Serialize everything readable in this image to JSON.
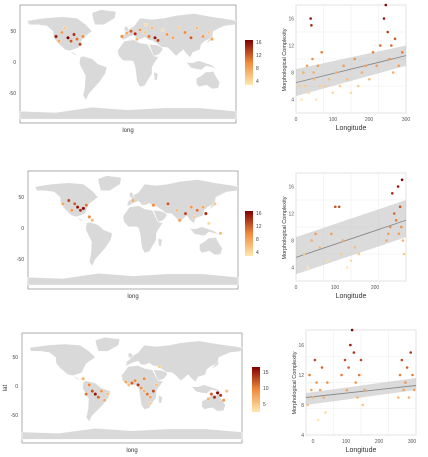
{
  "panel_1": {
    "map": {
      "xlabel": "long",
      "y_ticks": [
        "50",
        "0",
        "-50"
      ],
      "legend_ticks": [
        "16",
        "12",
        "8",
        "4"
      ],
      "colors": {
        "land": "#d9d9d9",
        "panel_bg": "#ffffff",
        "low": "#fee8b0",
        "mid": "#f08a3c",
        "high": "#7f0000"
      }
    },
    "scatter": {
      "xlabel": "Longitude",
      "ylabel": "Morphological Complexity",
      "x_ticks": [
        "0",
        "100",
        "200",
        "300"
      ],
      "y_ticks": [
        "16",
        "12",
        "8",
        "4"
      ]
    }
  },
  "panel_2": {
    "map": {
      "xlabel": "long",
      "y_ticks": [
        "50",
        "0",
        "-50"
      ],
      "legend_ticks": [
        "16",
        "12",
        "8",
        "4"
      ],
      "colors": {
        "land": "#d9d9d9",
        "panel_bg": "#ffffff",
        "low": "#fee8b0",
        "mid": "#f08a3c",
        "high": "#7f0000"
      }
    },
    "scatter": {
      "xlabel": "Longitude",
      "ylabel": "Morphological Complexity",
      "x_ticks": [
        "0",
        "100",
        "200"
      ],
      "y_ticks": [
        "16",
        "12",
        "8",
        "4"
      ]
    }
  },
  "panel_3": {
    "map": {
      "xlabel": "long",
      "ylabel": "lat",
      "y_ticks": [
        "50",
        "0",
        "-50"
      ],
      "legend_ticks": [
        "15",
        "10",
        "5"
      ],
      "colors": {
        "land": "#d9d9d9",
        "panel_bg": "#ffffff",
        "low": "#fee8b0",
        "mid": "#f08a3c",
        "high": "#7f0000"
      }
    },
    "scatter": {
      "xlabel": "Longitude",
      "ylabel": "Morphological Complexity",
      "x_ticks": [
        "0",
        "100",
        "200",
        "300"
      ],
      "y_ticks": [
        "16",
        "12",
        "8",
        "4"
      ]
    }
  },
  "chart_data": [
    {
      "type": "scatter",
      "subtype": "map",
      "xlabel": "long",
      "ylabel": "",
      "ylim": [
        -90,
        90
      ],
      "xlim": [
        -180,
        180
      ],
      "legend_range": [
        4,
        16
      ],
      "legend_position": "right",
      "points": [
        {
          "lon": -10,
          "lat": 42,
          "v": 10
        },
        {
          "lon": -2,
          "lat": 47,
          "v": 8
        },
        {
          "lon": 5,
          "lat": 50,
          "v": 12
        },
        {
          "lon": 12,
          "lat": 46,
          "v": 14
        },
        {
          "lon": 20,
          "lat": 52,
          "v": 9
        },
        {
          "lon": 28,
          "lat": 48,
          "v": 6
        },
        {
          "lon": 35,
          "lat": 42,
          "v": 11
        },
        {
          "lon": 40,
          "lat": 55,
          "v": 7
        },
        {
          "lon": 45,
          "lat": 40,
          "v": 15
        },
        {
          "lon": 50,
          "lat": 36,
          "v": 13
        },
        {
          "lon": 58,
          "lat": 52,
          "v": 5
        },
        {
          "lon": 65,
          "lat": 45,
          "v": 9
        },
        {
          "lon": 75,
          "lat": 40,
          "v": 8
        },
        {
          "lon": 85,
          "lat": 55,
          "v": 6
        },
        {
          "lon": 95,
          "lat": 48,
          "v": 10
        },
        {
          "lon": 105,
          "lat": 40,
          "v": 12
        },
        {
          "lon": 115,
          "lat": 55,
          "v": 7
        },
        {
          "lon": 125,
          "lat": 42,
          "v": 9
        },
        {
          "lon": 135,
          "lat": 48,
          "v": 6
        },
        {
          "lon": 140,
          "lat": 38,
          "v": 8
        },
        {
          "lon": 30,
          "lat": 60,
          "v": 5
        },
        {
          "lon": 15,
          "lat": 38,
          "v": 7
        },
        {
          "lon": -100,
          "lat": 40,
          "v": 16
        },
        {
          "lon": -95,
          "lat": 35,
          "v": 12
        },
        {
          "lon": -90,
          "lat": 45,
          "v": 14
        },
        {
          "lon": -85,
          "lat": 38,
          "v": 11
        },
        {
          "lon": -110,
          "lat": 48,
          "v": 9
        },
        {
          "lon": -120,
          "lat": 42,
          "v": 15
        },
        {
          "lon": -75,
          "lat": 42,
          "v": 10
        },
        {
          "lon": -105,
          "lat": 55,
          "v": 6
        },
        {
          "lon": -80,
          "lat": 30,
          "v": 13
        },
        {
          "lon": -115,
          "lat": 35,
          "v": 8
        }
      ]
    },
    {
      "type": "scatter",
      "xlabel": "Longitude",
      "ylabel": "Morphological Complexity",
      "xlim": [
        0,
        300
      ],
      "ylim": [
        2,
        18
      ],
      "trend": {
        "x": [
          0,
          300
        ],
        "y": [
          6.5,
          10.5
        ],
        "band": [
          [
            4.5,
            8.5
          ],
          [
            9.0,
            12.0
          ]
        ]
      },
      "points": [
        {
          "x": 10,
          "y": 6
        },
        {
          "x": 15,
          "y": 4
        },
        {
          "x": 20,
          "y": 8
        },
        {
          "x": 25,
          "y": 6
        },
        {
          "x": 30,
          "y": 9
        },
        {
          "x": 35,
          "y": 5
        },
        {
          "x": 40,
          "y": 16
        },
        {
          "x": 42,
          "y": 15
        },
        {
          "x": 45,
          "y": 10
        },
        {
          "x": 48,
          "y": 8
        },
        {
          "x": 50,
          "y": 7
        },
        {
          "x": 55,
          "y": 4
        },
        {
          "x": 60,
          "y": 9
        },
        {
          "x": 65,
          "y": 6
        },
        {
          "x": 70,
          "y": 11
        },
        {
          "x": 80,
          "y": 6
        },
        {
          "x": 90,
          "y": 7
        },
        {
          "x": 100,
          "y": 5
        },
        {
          "x": 110,
          "y": 8
        },
        {
          "x": 120,
          "y": 6
        },
        {
          "x": 130,
          "y": 9
        },
        {
          "x": 140,
          "y": 7
        },
        {
          "x": 150,
          "y": 5
        },
        {
          "x": 160,
          "y": 10
        },
        {
          "x": 170,
          "y": 6
        },
        {
          "x": 180,
          "y": 8
        },
        {
          "x": 190,
          "y": 9
        },
        {
          "x": 200,
          "y": 7
        },
        {
          "x": 210,
          "y": 11
        },
        {
          "x": 220,
          "y": 9
        },
        {
          "x": 230,
          "y": 12
        },
        {
          "x": 240,
          "y": 16
        },
        {
          "x": 245,
          "y": 18
        },
        {
          "x": 250,
          "y": 14
        },
        {
          "x": 255,
          "y": 10
        },
        {
          "x": 260,
          "y": 12
        },
        {
          "x": 265,
          "y": 8
        },
        {
          "x": 270,
          "y": 13
        },
        {
          "x": 280,
          "y": 9
        },
        {
          "x": 290,
          "y": 11
        }
      ]
    },
    {
      "type": "scatter",
      "subtype": "map",
      "xlabel": "long",
      "ylabel": "",
      "ylim": [
        -90,
        90
      ],
      "xlim": [
        -180,
        180
      ],
      "legend_range": [
        4,
        16
      ],
      "legend_position": "right",
      "points": [
        {
          "lon": 0,
          "lat": 45,
          "v": 8
        },
        {
          "lon": 35,
          "lat": 38,
          "v": 10
        },
        {
          "lon": 60,
          "lat": 40,
          "v": 12
        },
        {
          "lon": 75,
          "lat": 30,
          "v": 7
        },
        {
          "lon": 90,
          "lat": 25,
          "v": 13
        },
        {
          "lon": 100,
          "lat": 35,
          "v": 9
        },
        {
          "lon": 105,
          "lat": 20,
          "v": 6
        },
        {
          "lon": 110,
          "lat": 30,
          "v": 11
        },
        {
          "lon": 120,
          "lat": 35,
          "v": 8
        },
        {
          "lon": 125,
          "lat": 25,
          "v": 14
        },
        {
          "lon": 140,
          "lat": 40,
          "v": 6
        },
        {
          "lon": 80,
          "lat": 15,
          "v": 9
        },
        {
          "lon": 130,
          "lat": 10,
          "v": 5
        },
        {
          "lon": 150,
          "lat": -5,
          "v": 7
        },
        {
          "lon": -100,
          "lat": 40,
          "v": 12
        },
        {
          "lon": -95,
          "lat": 35,
          "v": 15
        },
        {
          "lon": -90,
          "lat": 30,
          "v": 14
        },
        {
          "lon": -85,
          "lat": 33,
          "v": 16
        },
        {
          "lon": -80,
          "lat": 38,
          "v": 11
        },
        {
          "lon": -105,
          "lat": 30,
          "v": 9
        },
        {
          "lon": -110,
          "lat": 45,
          "v": 13
        },
        {
          "lon": -120,
          "lat": 40,
          "v": 8
        },
        {
          "lon": -75,
          "lat": 20,
          "v": 10
        },
        {
          "lon": -70,
          "lat": 15,
          "v": 7
        }
      ]
    },
    {
      "type": "scatter",
      "xlabel": "Longitude",
      "ylabel": "Morphological Complexity",
      "xlim": [
        0,
        280
      ],
      "ylim": [
        2,
        18
      ],
      "trend": {
        "x": [
          0,
          280
        ],
        "y": [
          5.5,
          11.0
        ],
        "band": [
          [
            3.0,
            8.5
          ],
          [
            8.5,
            14.0
          ]
        ]
      },
      "points": [
        {
          "x": 20,
          "y": 6
        },
        {
          "x": 30,
          "y": 4
        },
        {
          "x": 40,
          "y": 8
        },
        {
          "x": 50,
          "y": 9
        },
        {
          "x": 60,
          "y": 7
        },
        {
          "x": 80,
          "y": 5
        },
        {
          "x": 90,
          "y": 9
        },
        {
          "x": 100,
          "y": 13
        },
        {
          "x": 110,
          "y": 13
        },
        {
          "x": 115,
          "y": 6
        },
        {
          "x": 120,
          "y": 8
        },
        {
          "x": 130,
          "y": 4
        },
        {
          "x": 140,
          "y": 5
        },
        {
          "x": 150,
          "y": 7
        },
        {
          "x": 160,
          "y": 6
        },
        {
          "x": 230,
          "y": 8
        },
        {
          "x": 235,
          "y": 9
        },
        {
          "x": 240,
          "y": 10
        },
        {
          "x": 245,
          "y": 15
        },
        {
          "x": 250,
          "y": 12
        },
        {
          "x": 255,
          "y": 11
        },
        {
          "x": 260,
          "y": 16
        },
        {
          "x": 262,
          "y": 9
        },
        {
          "x": 265,
          "y": 13
        },
        {
          "x": 268,
          "y": 10
        },
        {
          "x": 270,
          "y": 17
        },
        {
          "x": 272,
          "y": 8
        },
        {
          "x": 275,
          "y": 6
        }
      ]
    },
    {
      "type": "scatter",
      "subtype": "map",
      "xlabel": "long",
      "ylabel": "lat",
      "ylim": [
        -90,
        90
      ],
      "xlim": [
        -180,
        180
      ],
      "legend_range": [
        3,
        17
      ],
      "legend_position": "right",
      "points": [
        {
          "lon": -10,
          "lat": 10,
          "v": 8
        },
        {
          "lon": -5,
          "lat": 5,
          "v": 6
        },
        {
          "lon": 0,
          "lat": 8,
          "v": 12
        },
        {
          "lon": 5,
          "lat": 12,
          "v": 10
        },
        {
          "lon": 10,
          "lat": 5,
          "v": 14
        },
        {
          "lon": 15,
          "lat": 0,
          "v": 9
        },
        {
          "lon": 20,
          "lat": -5,
          "v": 7
        },
        {
          "lon": 25,
          "lat": -10,
          "v": 11
        },
        {
          "lon": 30,
          "lat": -15,
          "v": 8
        },
        {
          "lon": 35,
          "lat": -5,
          "v": 13
        },
        {
          "lon": 40,
          "lat": 5,
          "v": 6
        },
        {
          "lon": 20,
          "lat": 15,
          "v": 10
        },
        {
          "lon": 30,
          "lat": -25,
          "v": 5
        },
        {
          "lon": 130,
          "lat": -10,
          "v": 12
        },
        {
          "lon": 135,
          "lat": -15,
          "v": 15
        },
        {
          "lon": 140,
          "lat": -8,
          "v": 17
        },
        {
          "lon": 145,
          "lat": -12,
          "v": 14
        },
        {
          "lon": 150,
          "lat": -20,
          "v": 9
        },
        {
          "lon": 125,
          "lat": -18,
          "v": 7
        },
        {
          "lon": 155,
          "lat": -5,
          "v": 6
        },
        {
          "lon": -70,
          "lat": 5,
          "v": 10
        },
        {
          "lon": -65,
          "lat": -5,
          "v": 13
        },
        {
          "lon": -60,
          "lat": -10,
          "v": 16
        },
        {
          "lon": -55,
          "lat": -15,
          "v": 12
        },
        {
          "lon": -50,
          "lat": -5,
          "v": 9
        },
        {
          "lon": -45,
          "lat": -20,
          "v": 8
        },
        {
          "lon": -75,
          "lat": -10,
          "v": 11
        },
        {
          "lon": -80,
          "lat": 15,
          "v": 7
        },
        {
          "lon": -40,
          "lat": -10,
          "v": 6
        },
        {
          "lon": 45,
          "lat": 35,
          "v": 5
        }
      ]
    },
    {
      "type": "scatter",
      "xlabel": "Longitude",
      "ylabel": "Morphological Complexity",
      "xlim": [
        0,
        310
      ],
      "ylim": [
        4,
        18
      ],
      "trend": {
        "x": [
          0,
          310
        ],
        "y": [
          9.0,
          10.6
        ],
        "band": [
          [
            8.0,
            9.6
          ],
          [
            10.0,
            11.6
          ]
        ]
      },
      "points": [
        {
          "x": 5,
          "y": 8
        },
        {
          "x": 10,
          "y": 12
        },
        {
          "x": 15,
          "y": 10
        },
        {
          "x": 20,
          "y": 9
        },
        {
          "x": 25,
          "y": 14
        },
        {
          "x": 30,
          "y": 11
        },
        {
          "x": 35,
          "y": 6
        },
        {
          "x": 40,
          "y": 10
        },
        {
          "x": 45,
          "y": 13
        },
        {
          "x": 50,
          "y": 9
        },
        {
          "x": 55,
          "y": 7
        },
        {
          "x": 60,
          "y": 11
        },
        {
          "x": 100,
          "y": 12
        },
        {
          "x": 110,
          "y": 14
        },
        {
          "x": 115,
          "y": 10
        },
        {
          "x": 120,
          "y": 13
        },
        {
          "x": 125,
          "y": 16
        },
        {
          "x": 130,
          "y": 18
        },
        {
          "x": 135,
          "y": 15
        },
        {
          "x": 140,
          "y": 11
        },
        {
          "x": 145,
          "y": 9
        },
        {
          "x": 150,
          "y": 12
        },
        {
          "x": 155,
          "y": 14
        },
        {
          "x": 160,
          "y": 8
        },
        {
          "x": 165,
          "y": 10
        },
        {
          "x": 260,
          "y": 9
        },
        {
          "x": 265,
          "y": 12
        },
        {
          "x": 270,
          "y": 14
        },
        {
          "x": 275,
          "y": 10
        },
        {
          "x": 280,
          "y": 11
        },
        {
          "x": 285,
          "y": 13
        },
        {
          "x": 290,
          "y": 9
        },
        {
          "x": 295,
          "y": 15
        },
        {
          "x": 300,
          "y": 12
        },
        {
          "x": 305,
          "y": 10
        }
      ]
    }
  ]
}
